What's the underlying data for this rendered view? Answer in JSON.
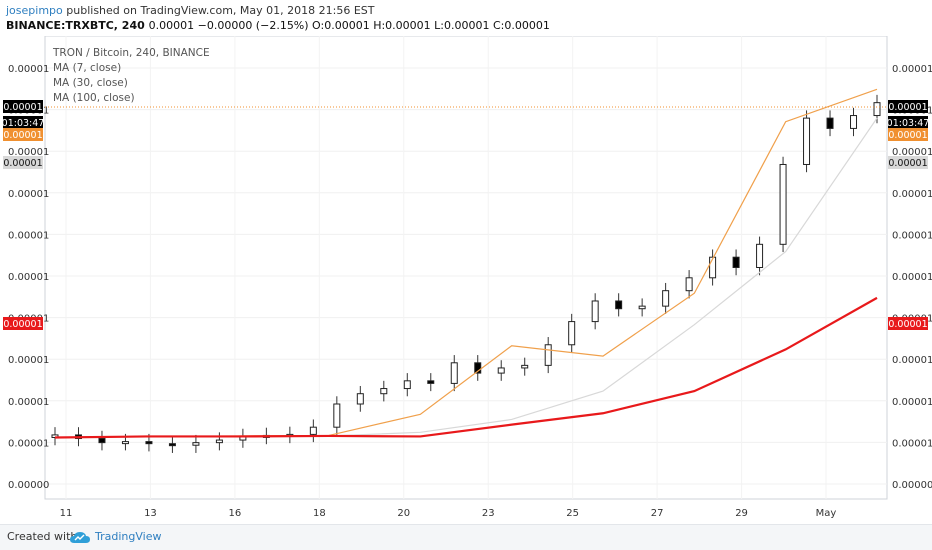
{
  "header": {
    "username": "josepimpo",
    "published": "published on TradingView.com, May 01, 2018 21:56 EST",
    "symbol": "BINANCE:TRXBTC, 240",
    "ohlc": "0.00001 −0.00000 (−2.15%) O:0.00001 H:0.00001 L:0.00001 C:0.00001"
  },
  "legend": {
    "title": "TRON / Bitcoin, 240, BINANCE",
    "ma1": "MA (7, close)",
    "ma2": "MA (30, close)",
    "ma3": "MA (100, close)"
  },
  "footer": {
    "created": "Created with",
    "brand": "TradingView"
  },
  "colors": {
    "ma7": "#f0a04b",
    "ma30": "#d8d8d8",
    "ma100": "#e8191b",
    "up_body": "#ffffff",
    "down_body": "#000000",
    "last_price_line": "#f09030",
    "label_black": "#000000",
    "label_orange": "#f09030",
    "label_gray": "#d8d8d8",
    "label_red": "#e8191b"
  },
  "icons": {
    "brand": "tradingview-cloud-icon"
  },
  "chart_data": {
    "type": "candlestick",
    "title": "TRON / Bitcoin, 240, BINANCE",
    "x_ticks": [
      "11",
      "13",
      "16",
      "18",
      "20",
      "23",
      "25",
      "27",
      "29",
      "May"
    ],
    "y_ticks": [
      "0.00001",
      "0.00001",
      "0.00001",
      "0.00001",
      "0.00001",
      "0.00001",
      "0.00001",
      "0.00001",
      "0.00001",
      "0.00001",
      "0.00000"
    ],
    "y_labels": {
      "last": "0.00001",
      "countdown": "01:03:47",
      "ma7": "0.00001",
      "ma30": "0.00001",
      "ma100": "0.00001"
    },
    "series": [
      {
        "name": "MA (7, close)",
        "values": [
          5.0,
          5.02,
          5.03,
          5.04,
          5.45,
          6.78,
          6.58,
          7.8,
          11.13,
          11.76
        ]
      },
      {
        "name": "MA (30, close)",
        "values": [
          5.0,
          5.02,
          5.02,
          5.03,
          5.1,
          5.35,
          5.9,
          7.19,
          8.61,
          11.2
        ]
      },
      {
        "name": "MA (100, close)",
        "values": [
          5.0,
          5.02,
          5.02,
          5.03,
          5.02,
          5.25,
          5.47,
          5.9,
          6.71,
          7.71
        ]
      }
    ],
    "candles_approx": [
      [
        5.0,
        5.05
      ],
      [
        5.05,
        4.98
      ],
      [
        4.98,
        4.9
      ],
      [
        4.9,
        4.92
      ],
      [
        4.92,
        4.88
      ],
      [
        4.88,
        4.85
      ],
      [
        4.85,
        4.9
      ],
      [
        4.9,
        4.95
      ],
      [
        4.95,
        5.02
      ],
      [
        5.02,
        5.04
      ],
      [
        5.04,
        5.06
      ],
      [
        5.06,
        5.2
      ],
      [
        5.2,
        5.65
      ],
      [
        5.65,
        5.85
      ],
      [
        5.85,
        5.95
      ],
      [
        5.95,
        6.1
      ],
      [
        6.1,
        6.05
      ],
      [
        6.05,
        6.45
      ],
      [
        6.45,
        6.25
      ],
      [
        6.25,
        6.35
      ],
      [
        6.35,
        6.4
      ],
      [
        6.4,
        6.8
      ],
      [
        6.8,
        7.25
      ],
      [
        7.25,
        7.65
      ],
      [
        7.65,
        7.5
      ],
      [
        7.5,
        7.55
      ],
      [
        7.55,
        7.85
      ],
      [
        7.85,
        8.1
      ],
      [
        8.1,
        8.5
      ],
      [
        8.5,
        8.3
      ],
      [
        8.3,
        8.75
      ],
      [
        8.75,
        10.3
      ],
      [
        10.3,
        11.2
      ],
      [
        11.2,
        11.0
      ],
      [
        11.0,
        11.25
      ],
      [
        11.25,
        11.5
      ]
    ],
    "xlabel": "",
    "ylabel": ""
  }
}
